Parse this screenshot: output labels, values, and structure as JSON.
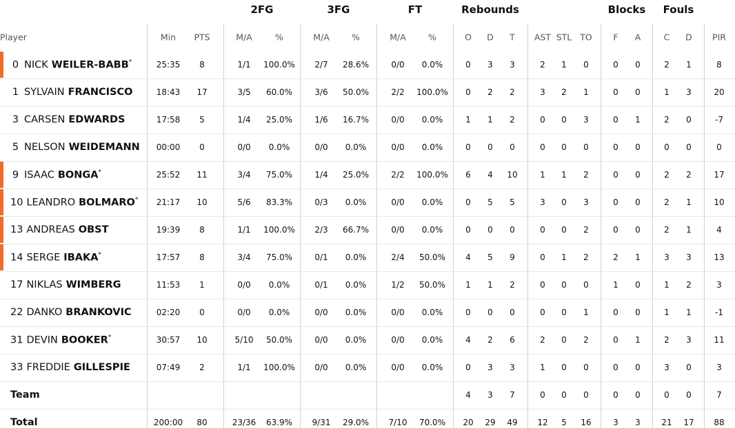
{
  "group_headers": [
    "2FG",
    "3FG",
    "FT",
    "Rebounds",
    "Blocks",
    "Fouls"
  ],
  "columns": [
    "Player",
    "Min",
    "PTS",
    "M/A",
    "%",
    "M/A",
    "%",
    "M/A",
    "%",
    "O",
    "D",
    "T",
    "AST",
    "STL",
    "TO",
    "F",
    "A",
    "C",
    "D",
    "PIR"
  ],
  "rows": [
    {
      "number": "0",
      "first": "NICK",
      "last": "WEILER-BABB",
      "mark": "*",
      "on_court": true,
      "cells": [
        "25:35",
        "8",
        "1/1",
        "100.0%",
        "2/7",
        "28.6%",
        "0/0",
        "0.0%",
        "0",
        "3",
        "3",
        "2",
        "1",
        "0",
        "0",
        "0",
        "2",
        "1",
        "8"
      ]
    },
    {
      "number": "1",
      "first": "SYLVAIN",
      "last": "FRANCISCO",
      "on_court": false,
      "cells": [
        "18:43",
        "17",
        "3/5",
        "60.0%",
        "3/6",
        "50.0%",
        "2/2",
        "100.0%",
        "0",
        "2",
        "2",
        "3",
        "2",
        "1",
        "0",
        "0",
        "1",
        "3",
        "20"
      ]
    },
    {
      "number": "3",
      "first": "CARSEN",
      "last": "EDWARDS",
      "on_court": false,
      "cells": [
        "17:58",
        "5",
        "1/4",
        "25.0%",
        "1/6",
        "16.7%",
        "0/0",
        "0.0%",
        "1",
        "1",
        "2",
        "0",
        "0",
        "3",
        "0",
        "1",
        "2",
        "0",
        "-7"
      ]
    },
    {
      "number": "5",
      "first": "NELSON",
      "last": "WEIDEMANN",
      "on_court": false,
      "cells": [
        "00:00",
        "0",
        "0/0",
        "0.0%",
        "0/0",
        "0.0%",
        "0/0",
        "0.0%",
        "0",
        "0",
        "0",
        "0",
        "0",
        "0",
        "0",
        "0",
        "0",
        "0",
        "0"
      ]
    },
    {
      "number": "9",
      "first": "ISAAC",
      "last": "BONGA",
      "mark": "*",
      "on_court": true,
      "cells": [
        "25:52",
        "11",
        "3/4",
        "75.0%",
        "1/4",
        "25.0%",
        "2/2",
        "100.0%",
        "6",
        "4",
        "10",
        "1",
        "1",
        "2",
        "0",
        "0",
        "2",
        "2",
        "17"
      ]
    },
    {
      "number": "10",
      "first": "LEANDRO",
      "last": "BOLMARO",
      "mark": "*",
      "on_court": true,
      "cells": [
        "21:17",
        "10",
        "5/6",
        "83.3%",
        "0/3",
        "0.0%",
        "0/0",
        "0.0%",
        "0",
        "5",
        "5",
        "3",
        "0",
        "3",
        "0",
        "0",
        "2",
        "1",
        "10"
      ]
    },
    {
      "number": "13",
      "first": "ANDREAS",
      "last": "OBST",
      "on_court": true,
      "cells": [
        "19:39",
        "8",
        "1/1",
        "100.0%",
        "2/3",
        "66.7%",
        "0/0",
        "0.0%",
        "0",
        "0",
        "0",
        "0",
        "0",
        "2",
        "0",
        "0",
        "2",
        "1",
        "4"
      ]
    },
    {
      "number": "14",
      "first": "SERGE",
      "last": "IBAKA",
      "mark": "*",
      "on_court": true,
      "cells": [
        "17:57",
        "8",
        "3/4",
        "75.0%",
        "0/1",
        "0.0%",
        "2/4",
        "50.0%",
        "4",
        "5",
        "9",
        "0",
        "1",
        "2",
        "2",
        "1",
        "3",
        "3",
        "13"
      ]
    },
    {
      "number": "17",
      "first": "NIKLAS",
      "last": "WIMBERG",
      "on_court": false,
      "cells": [
        "11:53",
        "1",
        "0/0",
        "0.0%",
        "0/1",
        "0.0%",
        "1/2",
        "50.0%",
        "1",
        "1",
        "2",
        "0",
        "0",
        "0",
        "1",
        "0",
        "1",
        "2",
        "3"
      ]
    },
    {
      "number": "22",
      "first": "DANKO",
      "last": "BRANKOVIC",
      "on_court": false,
      "cells": [
        "02:20",
        "0",
        "0/0",
        "0.0%",
        "0/0",
        "0.0%",
        "0/0",
        "0.0%",
        "0",
        "0",
        "0",
        "0",
        "0",
        "1",
        "0",
        "0",
        "1",
        "1",
        "-1"
      ]
    },
    {
      "number": "31",
      "first": "DEVIN",
      "last": "BOOKER",
      "mark": "*",
      "on_court": false,
      "cells": [
        "30:57",
        "10",
        "5/10",
        "50.0%",
        "0/0",
        "0.0%",
        "0/0",
        "0.0%",
        "4",
        "2",
        "6",
        "2",
        "0",
        "2",
        "0",
        "1",
        "2",
        "3",
        "11"
      ]
    },
    {
      "number": "33",
      "first": "FREDDIE",
      "last": "GILLESPIE",
      "on_court": false,
      "cells": [
        "07:49",
        "2",
        "1/1",
        "100.0%",
        "0/0",
        "0.0%",
        "0/0",
        "0.0%",
        "0",
        "3",
        "3",
        "1",
        "0",
        "0",
        "0",
        "0",
        "3",
        "0",
        "3"
      ]
    }
  ],
  "team": {
    "label": "Team",
    "cells": [
      null,
      null,
      null,
      null,
      null,
      null,
      null,
      null,
      "4",
      "3",
      "7",
      "0",
      "0",
      "0",
      "0",
      "0",
      "0",
      "0",
      "7"
    ]
  },
  "total": {
    "label": "Total",
    "cells": [
      "200:00",
      "80",
      "23/36",
      "63.9%",
      "9/31",
      "29.0%",
      "7/10",
      "70.0%",
      "20",
      "29",
      "49",
      "12",
      "5",
      "16",
      "3",
      "3",
      "21",
      "17",
      "88"
    ]
  }
}
